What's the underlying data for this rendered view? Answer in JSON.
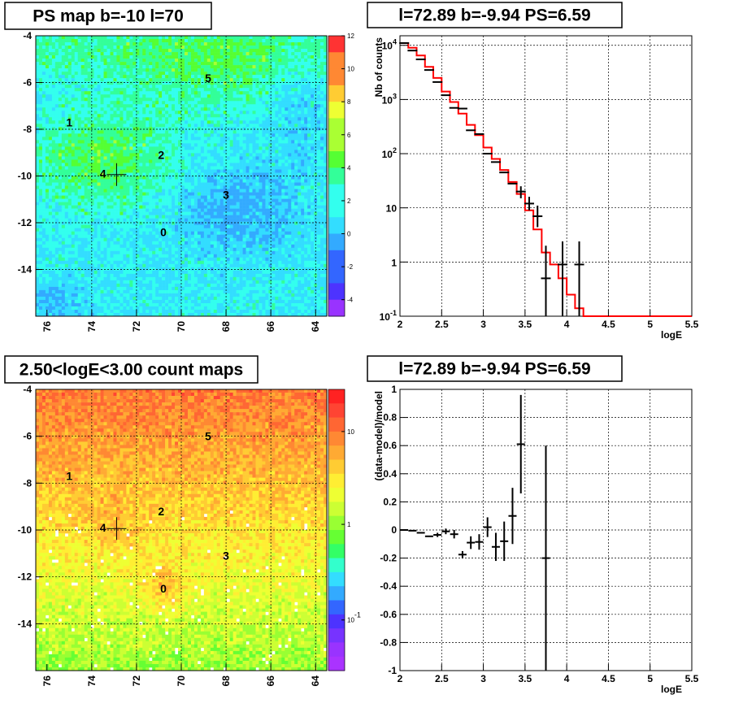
{
  "colors": {
    "data": "#000000",
    "model": "#ff0000"
  },
  "chart_data": [
    {
      "type": "heatmap",
      "title": "PS map b=-10 l=70",
      "x_axis": {
        "ticks": [
          "76",
          "74",
          "72",
          "70",
          "68",
          "66",
          "64"
        ],
        "reversed": true
      },
      "y_axis": {
        "ticks": [
          "-4",
          "-6",
          "-8",
          "-10",
          "-12",
          "-14"
        ]
      },
      "colorbar": {
        "ticks": [
          "12",
          "10",
          "8",
          "6",
          "4",
          "2",
          "0",
          "-2",
          "-4"
        ],
        "range": [
          -5,
          12
        ]
      },
      "grid": true,
      "sources": [
        {
          "label": "5",
          "l": 68.8,
          "b": -5.8
        },
        {
          "label": "1",
          "l": 75.0,
          "b": -7.7
        },
        {
          "label": "2",
          "l": 70.9,
          "b": -9.1
        },
        {
          "label": "4",
          "l": 73.5,
          "b": -9.9
        },
        {
          "label": "3",
          "l": 68.0,
          "b": -10.8
        },
        {
          "label": "0",
          "l": 70.8,
          "b": -12.4
        }
      ],
      "marker": {
        "l": 72.89,
        "b": -9.94
      }
    },
    {
      "type": "line",
      "title": "l=72.89 b=-9.94 PS=6.59",
      "xlabel": "logE",
      "ylabel": "Nb of counts",
      "y_scale": "log",
      "xlim": [
        2,
        5.5
      ],
      "ylim": [
        0.1,
        15000
      ],
      "x_ticks": [
        "2",
        "2.5",
        "3",
        "3.5",
        "4",
        "4.5",
        "5",
        "5.5"
      ],
      "y_ticks": [
        "10^4",
        "10^3",
        "10^2",
        "10",
        "1",
        "10^-1"
      ],
      "grid": true,
      "series": [
        {
          "kind": "data",
          "x": [
            2.05,
            2.15,
            2.25,
            2.35,
            2.45,
            2.55,
            2.65,
            2.75,
            2.85,
            2.95,
            3.05,
            3.15,
            3.25,
            3.35,
            3.45,
            3.55,
            3.65,
            3.75,
            3.85,
            3.95,
            4.05,
            4.15
          ],
          "y": [
            11000,
            8000,
            5500,
            3500,
            2100,
            1200,
            700,
            680,
            270,
            230,
            100,
            70,
            45,
            28,
            20,
            12,
            7,
            0.5,
            0,
            0.9,
            0,
            0.9
          ],
          "err_lo": [
            0,
            0,
            0,
            0,
            0,
            0,
            0,
            0,
            0,
            0,
            0,
            0,
            0,
            0,
            5,
            3,
            2.6,
            0.5,
            0,
            0.9,
            0,
            0.9
          ],
          "err_hi": [
            0,
            0,
            0,
            0,
            0,
            0,
            0,
            0,
            0,
            0,
            0,
            0,
            0,
            0,
            5,
            4,
            4,
            1.5,
            0,
            1.5,
            0,
            1.5
          ]
        },
        {
          "kind": "model",
          "edges": [
            2.0,
            2.1,
            2.2,
            2.3,
            2.4,
            2.5,
            2.6,
            2.7,
            2.8,
            2.9,
            3.0,
            3.1,
            3.2,
            3.3,
            3.4,
            3.5,
            3.6,
            3.7,
            3.8,
            3.9,
            4.0,
            4.1,
            4.2,
            5.5
          ],
          "y": [
            11000,
            9000,
            6500,
            4000,
            2500,
            1400,
            900,
            550,
            340,
            220,
            130,
            80,
            50,
            30,
            18,
            9,
            4,
            1.5,
            0.9,
            0.5,
            0.25,
            0.14,
            0.1
          ]
        }
      ]
    },
    {
      "type": "heatmap",
      "title": "2.50<logE<3.00 count maps",
      "x_axis": {
        "ticks": [
          "76",
          "74",
          "72",
          "70",
          "68",
          "66",
          "64"
        ],
        "reversed": true
      },
      "y_axis": {
        "ticks": [
          "-4",
          "-6",
          "-8",
          "-10",
          "-12",
          "-14"
        ]
      },
      "colorbar": {
        "ticks": [
          "10",
          "1",
          "10^-1"
        ],
        "scale": "log"
      },
      "grid": true,
      "sources": [
        {
          "label": "5",
          "l": 68.8,
          "b": -6.0
        },
        {
          "label": "1",
          "l": 75.0,
          "b": -7.7
        },
        {
          "label": "2",
          "l": 70.9,
          "b": -9.2
        },
        {
          "label": "4",
          "l": 73.5,
          "b": -9.9
        },
        {
          "label": "3",
          "l": 68.0,
          "b": -11.1
        },
        {
          "label": "0",
          "l": 70.8,
          "b": -12.5
        }
      ],
      "marker": {
        "l": 72.89,
        "b": -9.94
      }
    },
    {
      "type": "scatter",
      "title": "l=72.89 b=-9.94 PS=6.59",
      "xlabel": "logE",
      "ylabel": "(data-model)/model",
      "xlim": [
        2,
        5.5
      ],
      "ylim": [
        -1,
        1
      ],
      "x_ticks": [
        "2",
        "2.5",
        "3",
        "3.5",
        "4",
        "4.5",
        "5",
        "5.5"
      ],
      "y_ticks": [
        "1",
        "0.8",
        "0.6",
        "0.4",
        "0.2",
        "0",
        "-0.2",
        "-0.4",
        "-0.6",
        "-0.8",
        "-1"
      ],
      "grid": true,
      "series": [
        {
          "kind": "residual",
          "x": [
            2.05,
            2.15,
            2.25,
            2.35,
            2.45,
            2.55,
            2.65,
            2.75,
            2.85,
            2.95,
            3.05,
            3.15,
            3.25,
            3.35,
            3.45,
            3.75
          ],
          "y": [
            0.0,
            -0.005,
            -0.02,
            -0.045,
            -0.035,
            -0.01,
            -0.03,
            -0.175,
            -0.09,
            -0.085,
            0.02,
            -0.12,
            -0.08,
            0.1,
            0.61,
            -0.2
          ],
          "err": [
            0.005,
            0.006,
            0.008,
            0.01,
            0.015,
            0.02,
            0.03,
            0.025,
            0.045,
            0.055,
            0.07,
            0.1,
            0.14,
            0.2,
            0.35,
            0.8
          ]
        }
      ]
    }
  ]
}
